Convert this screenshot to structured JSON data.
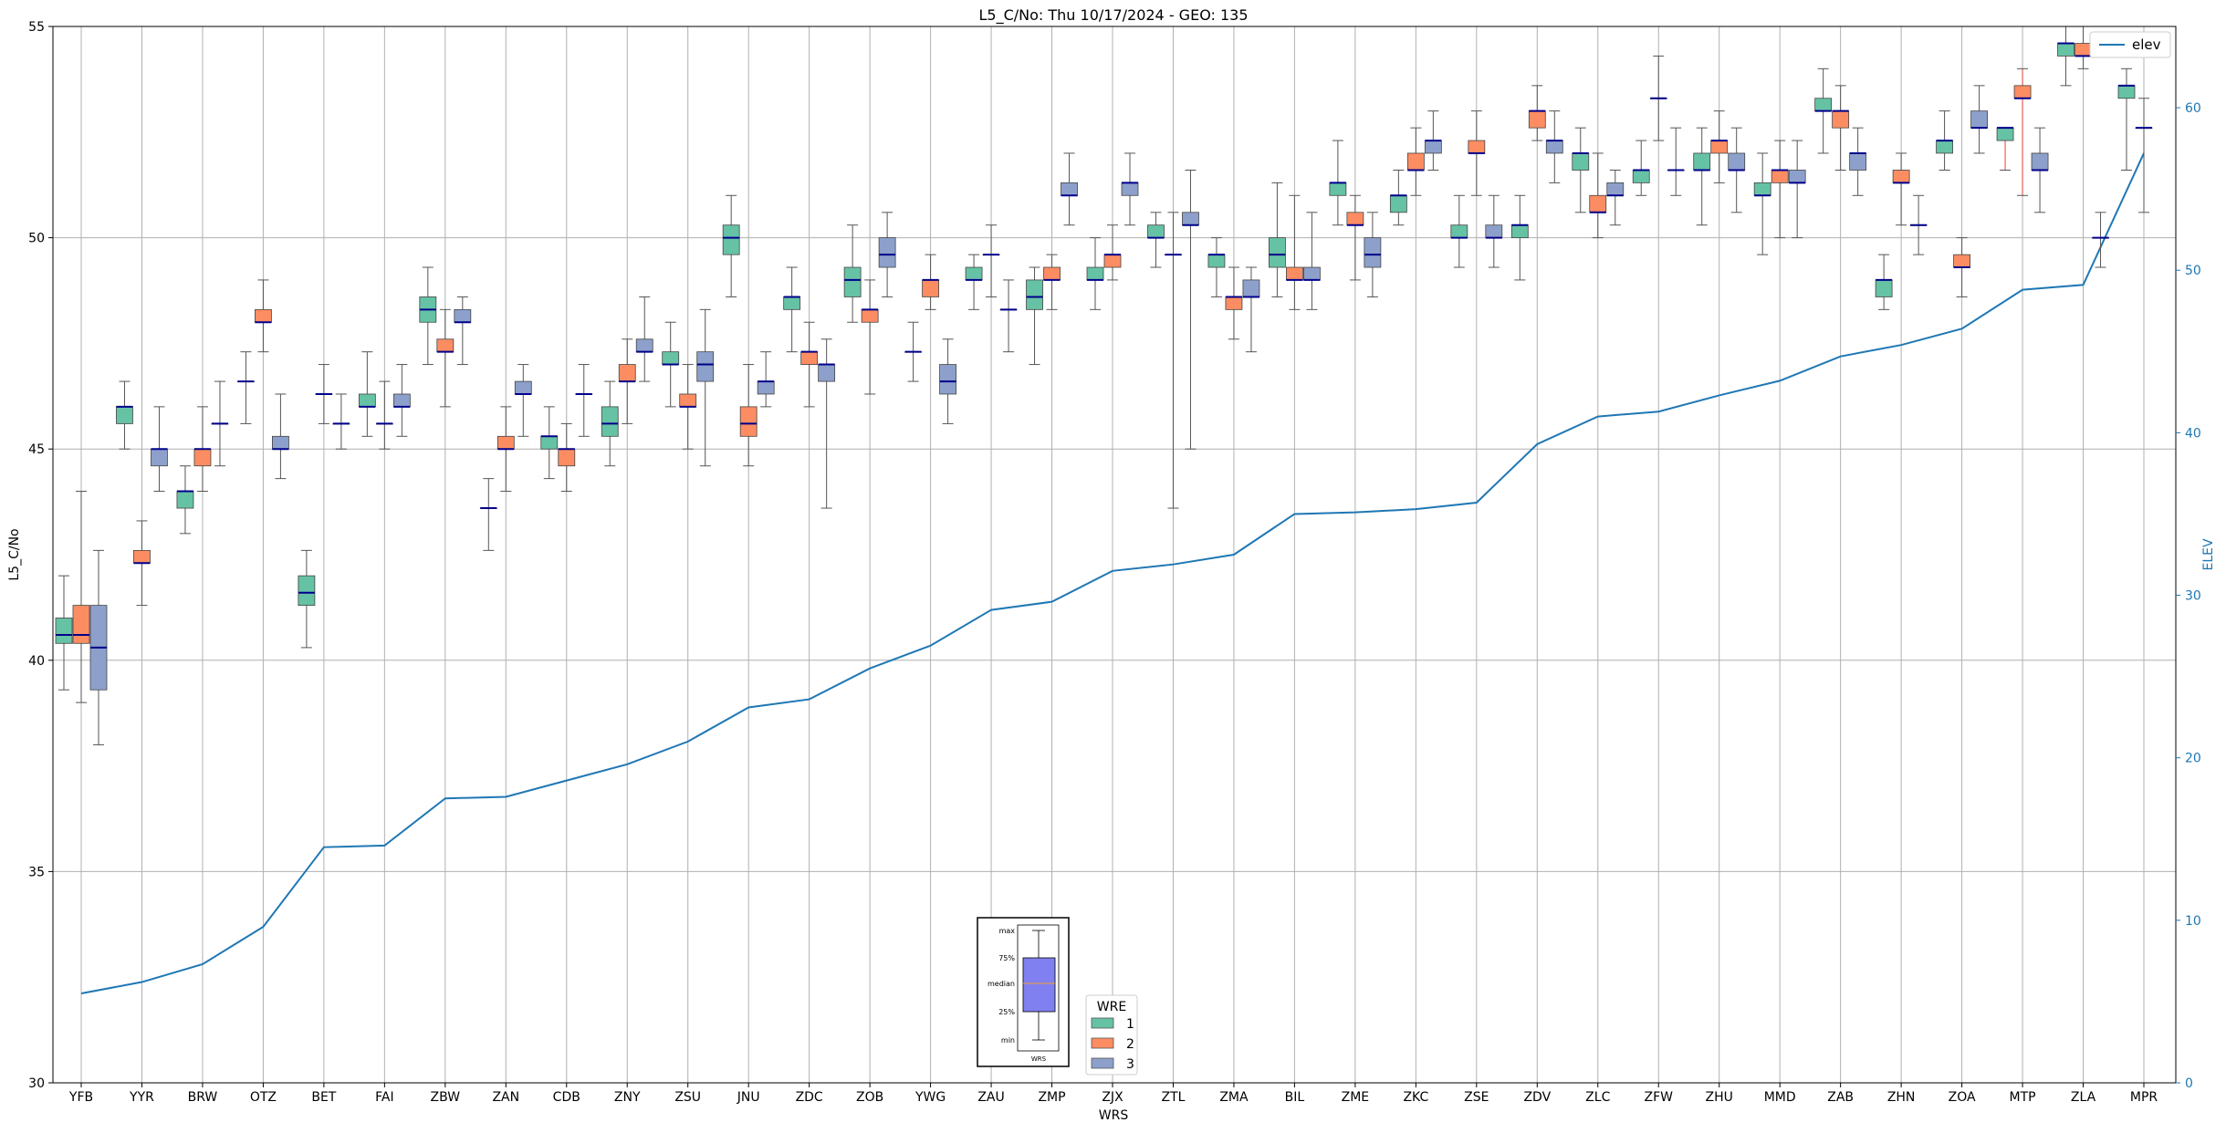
{
  "chart_data": {
    "type": "box",
    "title": "L5_C/No: Thu 10/17/2024 - GEO: 135",
    "xlabel": "WRS",
    "ylabel": "L5_C/No",
    "y2label": "ELEV",
    "ylim": [
      30,
      55
    ],
    "y2lim": [
      0,
      65
    ],
    "yticks": [
      30,
      35,
      40,
      45,
      50,
      55
    ],
    "y2ticks": [
      0,
      10,
      20,
      30,
      40,
      50,
      60
    ],
    "grid": true,
    "categories": [
      "YFB",
      "YYR",
      "BRW",
      "OTZ",
      "BET",
      "FAI",
      "ZBW",
      "ZAN",
      "CDB",
      "ZNY",
      "ZSU",
      "JNU",
      "ZDC",
      "ZOB",
      "YWG",
      "ZAU",
      "ZMP",
      "ZJX",
      "ZTL",
      "ZMA",
      "BIL",
      "ZME",
      "ZKC",
      "ZSE",
      "ZDV",
      "ZLC",
      "ZFW",
      "ZHU",
      "MMD",
      "ZAB",
      "ZHN",
      "ZOA",
      "MTP",
      "ZLA",
      "MPR"
    ],
    "wre_colors": {
      "1": "#66c2a5",
      "2": "#fc8d62",
      "3": "#8da0cb"
    },
    "median_color": "#00008b",
    "boxes": [
      {
        "station": "YFB",
        "wre": 1,
        "whislo": 39.3,
        "q1": 40.4,
        "med": 40.6,
        "q3": 41.0,
        "whishi": 42.0
      },
      {
        "station": "YFB",
        "wre": 2,
        "whislo": 39.0,
        "q1": 40.4,
        "med": 40.6,
        "q3": 41.3,
        "whishi": 44.0
      },
      {
        "station": "YFB",
        "wre": 3,
        "whislo": 38.0,
        "q1": 39.3,
        "med": 40.3,
        "q3": 41.3,
        "whishi": 42.6
      },
      {
        "station": "YYR",
        "wre": 1,
        "whislo": 45.0,
        "q1": 45.6,
        "med": 46.0,
        "q3": 46.0,
        "whishi": 46.6
      },
      {
        "station": "YYR",
        "wre": 2,
        "whislo": 41.3,
        "q1": 42.3,
        "med": 42.3,
        "q3": 42.6,
        "whishi": 43.3
      },
      {
        "station": "YYR",
        "wre": 3,
        "whislo": 44.0,
        "q1": 44.6,
        "med": 45.0,
        "q3": 45.0,
        "whishi": 46.0
      },
      {
        "station": "BRW",
        "wre": 1,
        "whislo": 43.0,
        "q1": 43.6,
        "med": 44.0,
        "q3": 44.0,
        "whishi": 44.6
      },
      {
        "station": "BRW",
        "wre": 2,
        "whislo": 44.0,
        "q1": 44.6,
        "med": 45.0,
        "q3": 45.0,
        "whishi": 46.0
      },
      {
        "station": "BRW",
        "wre": 3,
        "whislo": 44.6,
        "q1": 45.6,
        "med": 45.6,
        "q3": 45.6,
        "whishi": 46.6
      },
      {
        "station": "OTZ",
        "wre": 1,
        "whislo": 45.6,
        "q1": 46.6,
        "med": 46.6,
        "q3": 46.6,
        "whishi": 47.3
      },
      {
        "station": "OTZ",
        "wre": 2,
        "whislo": 47.3,
        "q1": 48.0,
        "med": 48.0,
        "q3": 48.3,
        "whishi": 49.0
      },
      {
        "station": "OTZ",
        "wre": 3,
        "whislo": 44.3,
        "q1": 45.0,
        "med": 45.0,
        "q3": 45.3,
        "whishi": 46.3
      },
      {
        "station": "BET",
        "wre": 1,
        "whislo": 40.3,
        "q1": 41.3,
        "med": 41.6,
        "q3": 42.0,
        "whishi": 42.6
      },
      {
        "station": "BET",
        "wre": 2,
        "whislo": 45.6,
        "q1": 46.3,
        "med": 46.3,
        "q3": 46.3,
        "whishi": 47.0
      },
      {
        "station": "BET",
        "wre": 3,
        "whislo": 45.0,
        "q1": 45.6,
        "med": 45.6,
        "q3": 45.6,
        "whishi": 46.3
      },
      {
        "station": "FAI",
        "wre": 1,
        "whislo": 45.3,
        "q1": 46.0,
        "med": 46.0,
        "q3": 46.3,
        "whishi": 47.3
      },
      {
        "station": "FAI",
        "wre": 2,
        "whislo": 45.0,
        "q1": 45.6,
        "med": 45.6,
        "q3": 45.6,
        "whishi": 46.6
      },
      {
        "station": "FAI",
        "wre": 3,
        "whislo": 45.3,
        "q1": 46.0,
        "med": 46.0,
        "q3": 46.3,
        "whishi": 47.0
      },
      {
        "station": "ZBW",
        "wre": 1,
        "whislo": 47.0,
        "q1": 48.0,
        "med": 48.3,
        "q3": 48.6,
        "whishi": 49.3
      },
      {
        "station": "ZBW",
        "wre": 2,
        "whislo": 46.0,
        "q1": 47.3,
        "med": 47.3,
        "q3": 47.6,
        "whishi": 48.3
      },
      {
        "station": "ZBW",
        "wre": 3,
        "whislo": 47.0,
        "q1": 48.0,
        "med": 48.0,
        "q3": 48.3,
        "whishi": 48.6
      },
      {
        "station": "ZAN",
        "wre": 1,
        "whislo": 42.6,
        "q1": 43.6,
        "med": 43.6,
        "q3": 43.6,
        "whishi": 44.3
      },
      {
        "station": "ZAN",
        "wre": 2,
        "whislo": 44.0,
        "q1": 45.0,
        "med": 45.0,
        "q3": 45.3,
        "whishi": 46.0
      },
      {
        "station": "ZAN",
        "wre": 3,
        "whislo": 45.3,
        "q1": 46.3,
        "med": 46.3,
        "q3": 46.6,
        "whishi": 47.0
      },
      {
        "station": "CDB",
        "wre": 1,
        "whislo": 44.3,
        "q1": 45.0,
        "med": 45.3,
        "q3": 45.3,
        "whishi": 46.0
      },
      {
        "station": "CDB",
        "wre": 2,
        "whislo": 44.0,
        "q1": 44.6,
        "med": 45.0,
        "q3": 45.0,
        "whishi": 45.6
      },
      {
        "station": "CDB",
        "wre": 3,
        "whislo": 45.3,
        "q1": 46.3,
        "med": 46.3,
        "q3": 46.3,
        "whishi": 47.0
      },
      {
        "station": "ZNY",
        "wre": 1,
        "whislo": 44.6,
        "q1": 45.3,
        "med": 45.6,
        "q3": 46.0,
        "whishi": 46.6
      },
      {
        "station": "ZNY",
        "wre": 2,
        "whislo": 45.6,
        "q1": 46.6,
        "med": 46.6,
        "q3": 47.0,
        "whishi": 47.6
      },
      {
        "station": "ZNY",
        "wre": 3,
        "whislo": 46.6,
        "q1": 47.3,
        "med": 47.3,
        "q3": 47.6,
        "whishi": 48.6
      },
      {
        "station": "ZSU",
        "wre": 1,
        "whislo": 46.0,
        "q1": 47.0,
        "med": 47.0,
        "q3": 47.3,
        "whishi": 48.0
      },
      {
        "station": "ZSU",
        "wre": 2,
        "whislo": 45.0,
        "q1": 46.0,
        "med": 46.0,
        "q3": 46.3,
        "whishi": 47.0
      },
      {
        "station": "ZSU",
        "wre": 3,
        "whislo": 44.6,
        "q1": 46.6,
        "med": 47.0,
        "q3": 47.3,
        "whishi": 48.3
      },
      {
        "station": "JNU",
        "wre": 1,
        "whislo": 48.6,
        "q1": 49.6,
        "med": 50.0,
        "q3": 50.3,
        "whishi": 51.0
      },
      {
        "station": "JNU",
        "wre": 2,
        "whislo": 44.6,
        "q1": 45.3,
        "med": 45.6,
        "q3": 46.0,
        "whishi": 47.0
      },
      {
        "station": "JNU",
        "wre": 3,
        "whislo": 46.0,
        "q1": 46.3,
        "med": 46.6,
        "q3": 46.6,
        "whishi": 47.3
      },
      {
        "station": "ZDC",
        "wre": 1,
        "whislo": 47.3,
        "q1": 48.3,
        "med": 48.6,
        "q3": 48.6,
        "whishi": 49.3
      },
      {
        "station": "ZDC",
        "wre": 2,
        "whislo": 46.0,
        "q1": 47.0,
        "med": 47.3,
        "q3": 47.3,
        "whishi": 48.0
      },
      {
        "station": "ZDC",
        "wre": 3,
        "whislo": 43.6,
        "q1": 46.6,
        "med": 47.0,
        "q3": 47.0,
        "whishi": 47.6
      },
      {
        "station": "ZOB",
        "wre": 1,
        "whislo": 48.0,
        "q1": 48.6,
        "med": 49.0,
        "q3": 49.3,
        "whishi": 50.3
      },
      {
        "station": "ZOB",
        "wre": 2,
        "whislo": 46.3,
        "q1": 48.0,
        "med": 48.3,
        "q3": 48.3,
        "whishi": 49.0
      },
      {
        "station": "ZOB",
        "wre": 3,
        "whislo": 48.6,
        "q1": 49.3,
        "med": 49.6,
        "q3": 50.0,
        "whishi": 50.6
      },
      {
        "station": "YWG",
        "wre": 1,
        "whislo": 46.6,
        "q1": 47.3,
        "med": 47.3,
        "q3": 47.3,
        "whishi": 48.0
      },
      {
        "station": "YWG",
        "wre": 2,
        "whislo": 48.3,
        "q1": 48.6,
        "med": 49.0,
        "q3": 49.0,
        "whishi": 49.6
      },
      {
        "station": "YWG",
        "wre": 3,
        "whislo": 45.6,
        "q1": 46.3,
        "med": 46.6,
        "q3": 47.0,
        "whishi": 47.6
      },
      {
        "station": "ZAU",
        "wre": 1,
        "whislo": 48.3,
        "q1": 49.0,
        "med": 49.0,
        "q3": 49.3,
        "whishi": 49.6
      },
      {
        "station": "ZAU",
        "wre": 2,
        "whislo": 48.6,
        "q1": 49.6,
        "med": 49.6,
        "q3": 49.6,
        "whishi": 50.3
      },
      {
        "station": "ZAU",
        "wre": 3,
        "whislo": 47.3,
        "q1": 48.3,
        "med": 48.3,
        "q3": 48.3,
        "whishi": 49.0
      },
      {
        "station": "ZMP",
        "wre": 1,
        "whislo": 47.0,
        "q1": 48.3,
        "med": 48.6,
        "q3": 49.0,
        "whishi": 49.3
      },
      {
        "station": "ZMP",
        "wre": 2,
        "whislo": 48.3,
        "q1": 49.0,
        "med": 49.0,
        "q3": 49.3,
        "whishi": 49.6
      },
      {
        "station": "ZMP",
        "wre": 3,
        "whislo": 50.3,
        "q1": 51.0,
        "med": 51.0,
        "q3": 51.3,
        "whishi": 52.0
      },
      {
        "station": "ZJX",
        "wre": 1,
        "whislo": 48.3,
        "q1": 49.0,
        "med": 49.0,
        "q3": 49.3,
        "whishi": 50.0
      },
      {
        "station": "ZJX",
        "wre": 2,
        "whislo": 49.0,
        "q1": 49.3,
        "med": 49.6,
        "q3": 49.6,
        "whishi": 50.3
      },
      {
        "station": "ZJX",
        "wre": 3,
        "whislo": 50.3,
        "q1": 51.0,
        "med": 51.3,
        "q3": 51.3,
        "whishi": 52.0
      },
      {
        "station": "ZTL",
        "wre": 1,
        "whislo": 49.3,
        "q1": 50.0,
        "med": 50.0,
        "q3": 50.3,
        "whishi": 50.6
      },
      {
        "station": "ZTL",
        "wre": 2,
        "whislo": 43.6,
        "q1": 49.6,
        "med": 49.6,
        "q3": 49.6,
        "whishi": 50.6
      },
      {
        "station": "ZTL",
        "wre": 3,
        "whislo": 45.0,
        "q1": 50.3,
        "med": 50.3,
        "q3": 50.6,
        "whishi": 51.6
      },
      {
        "station": "ZMA",
        "wre": 1,
        "whislo": 48.6,
        "q1": 49.3,
        "med": 49.6,
        "q3": 49.6,
        "whishi": 50.0
      },
      {
        "station": "ZMA",
        "wre": 2,
        "whislo": 47.6,
        "q1": 48.3,
        "med": 48.6,
        "q3": 48.6,
        "whishi": 49.3
      },
      {
        "station": "ZMA",
        "wre": 3,
        "whislo": 47.3,
        "q1": 48.6,
        "med": 48.6,
        "q3": 49.0,
        "whishi": 49.3
      },
      {
        "station": "BIL",
        "wre": 1,
        "whislo": 48.6,
        "q1": 49.3,
        "med": 49.6,
        "q3": 50.0,
        "whishi": 51.3
      },
      {
        "station": "BIL",
        "wre": 2,
        "whislo": 48.3,
        "q1": 49.0,
        "med": 49.0,
        "q3": 49.3,
        "whishi": 51.0
      },
      {
        "station": "BIL",
        "wre": 3,
        "whislo": 48.3,
        "q1": 49.0,
        "med": 49.0,
        "q3": 49.3,
        "whishi": 50.6
      },
      {
        "station": "ZME",
        "wre": 1,
        "whislo": 50.3,
        "q1": 51.0,
        "med": 51.3,
        "q3": 51.3,
        "whishi": 52.3
      },
      {
        "station": "ZME",
        "wre": 2,
        "whislo": 49.0,
        "q1": 50.3,
        "med": 50.3,
        "q3": 50.6,
        "whishi": 51.0
      },
      {
        "station": "ZME",
        "wre": 3,
        "whislo": 48.6,
        "q1": 49.3,
        "med": 49.6,
        "q3": 50.0,
        "whishi": 50.6
      },
      {
        "station": "ZKC",
        "wre": 1,
        "whislo": 50.3,
        "q1": 50.6,
        "med": 51.0,
        "q3": 51.0,
        "whishi": 51.6
      },
      {
        "station": "ZKC",
        "wre": 2,
        "whislo": 51.0,
        "q1": 51.6,
        "med": 51.6,
        "q3": 52.0,
        "whishi": 52.6
      },
      {
        "station": "ZKC",
        "wre": 3,
        "whislo": 51.6,
        "q1": 52.0,
        "med": 52.3,
        "q3": 52.3,
        "whishi": 53.0
      },
      {
        "station": "ZSE",
        "wre": 1,
        "whislo": 49.3,
        "q1": 50.0,
        "med": 50.0,
        "q3": 50.3,
        "whishi": 51.0
      },
      {
        "station": "ZSE",
        "wre": 2,
        "whislo": 51.0,
        "q1": 52.0,
        "med": 52.0,
        "q3": 52.3,
        "whishi": 53.0
      },
      {
        "station": "ZSE",
        "wre": 3,
        "whislo": 49.3,
        "q1": 50.0,
        "med": 50.0,
        "q3": 50.3,
        "whishi": 51.0
      },
      {
        "station": "ZDV",
        "wre": 1,
        "whislo": 49.0,
        "q1": 50.0,
        "med": 50.3,
        "q3": 50.3,
        "whishi": 51.0
      },
      {
        "station": "ZDV",
        "wre": 2,
        "whislo": 52.3,
        "q1": 52.6,
        "med": 53.0,
        "q3": 53.0,
        "whishi": 53.6
      },
      {
        "station": "ZDV",
        "wre": 3,
        "whislo": 51.3,
        "q1": 52.0,
        "med": 52.3,
        "q3": 52.3,
        "whishi": 53.0
      },
      {
        "station": "ZLC",
        "wre": 1,
        "whislo": 50.6,
        "q1": 51.6,
        "med": 52.0,
        "q3": 52.0,
        "whishi": 52.6
      },
      {
        "station": "ZLC",
        "wre": 2,
        "whislo": 50.0,
        "q1": 50.6,
        "med": 50.6,
        "q3": 51.0,
        "whishi": 52.0
      },
      {
        "station": "ZLC",
        "wre": 3,
        "whislo": 50.3,
        "q1": 51.0,
        "med": 51.0,
        "q3": 51.3,
        "whishi": 51.6
      },
      {
        "station": "ZFW",
        "wre": 1,
        "whislo": 51.0,
        "q1": 51.3,
        "med": 51.6,
        "q3": 51.6,
        "whishi": 52.3
      },
      {
        "station": "ZFW",
        "wre": 2,
        "whislo": 52.3,
        "q1": 53.3,
        "med": 53.3,
        "q3": 53.3,
        "whishi": 54.3
      },
      {
        "station": "ZFW",
        "wre": 3,
        "whislo": 51.0,
        "q1": 51.6,
        "med": 51.6,
        "q3": 51.6,
        "whishi": 52.6
      },
      {
        "station": "ZHU",
        "wre": 1,
        "whislo": 50.3,
        "q1": 51.6,
        "med": 51.6,
        "q3": 52.0,
        "whishi": 52.6
      },
      {
        "station": "ZHU",
        "wre": 2,
        "whislo": 51.3,
        "q1": 52.0,
        "med": 52.3,
        "q3": 52.3,
        "whishi": 53.0
      },
      {
        "station": "ZHU",
        "wre": 3,
        "whislo": 50.6,
        "q1": 51.6,
        "med": 51.6,
        "q3": 52.0,
        "whishi": 52.6
      },
      {
        "station": "MMD",
        "wre": 1,
        "whislo": 49.6,
        "q1": 51.0,
        "med": 51.0,
        "q3": 51.3,
        "whishi": 52.0
      },
      {
        "station": "MMD",
        "wre": 2,
        "whislo": 50.0,
        "q1": 51.3,
        "med": 51.6,
        "q3": 51.6,
        "whishi": 52.3
      },
      {
        "station": "MMD",
        "wre": 3,
        "whislo": 50.0,
        "q1": 51.3,
        "med": 51.3,
        "q3": 51.6,
        "whishi": 52.3
      },
      {
        "station": "ZAB",
        "wre": 1,
        "whislo": 52.0,
        "q1": 53.0,
        "med": 53.0,
        "q3": 53.3,
        "whishi": 54.0
      },
      {
        "station": "ZAB",
        "wre": 2,
        "whislo": 51.6,
        "q1": 52.6,
        "med": 53.0,
        "q3": 53.0,
        "whishi": 53.6
      },
      {
        "station": "ZAB",
        "wre": 3,
        "whislo": 51.0,
        "q1": 51.6,
        "med": 52.0,
        "q3": 52.0,
        "whishi": 52.6
      },
      {
        "station": "ZHN",
        "wre": 1,
        "whislo": 48.3,
        "q1": 48.6,
        "med": 49.0,
        "q3": 49.0,
        "whishi": 49.6
      },
      {
        "station": "ZHN",
        "wre": 2,
        "whislo": 50.3,
        "q1": 51.3,
        "med": 51.3,
        "q3": 51.6,
        "whishi": 52.0
      },
      {
        "station": "ZHN",
        "wre": 3,
        "whislo": 49.6,
        "q1": 50.3,
        "med": 50.3,
        "q3": 50.3,
        "whishi": 51.0
      },
      {
        "station": "ZOA",
        "wre": 1,
        "whislo": 51.6,
        "q1": 52.0,
        "med": 52.3,
        "q3": 52.3,
        "whishi": 53.0
      },
      {
        "station": "ZOA",
        "wre": 2,
        "whislo": 48.6,
        "q1": 49.3,
        "med": 49.3,
        "q3": 49.6,
        "whishi": 50.0
      },
      {
        "station": "ZOA",
        "wre": 3,
        "whislo": 52.0,
        "q1": 52.6,
        "med": 52.6,
        "q3": 53.0,
        "whishi": 53.6
      },
      {
        "station": "MTP",
        "wre": 1,
        "whislo": 51.6,
        "q1": 52.3,
        "med": 52.6,
        "q3": 52.6,
        "whishi": 52.6
      },
      {
        "station": "MTP",
        "wre": 2,
        "whislo": 51.0,
        "q1": 53.3,
        "med": 53.3,
        "q3": 53.6,
        "whishi": 54.0
      },
      {
        "station": "MTP",
        "wre": 3,
        "whislo": 50.6,
        "q1": 51.6,
        "med": 51.6,
        "q3": 52.0,
        "whishi": 52.6
      },
      {
        "station": "ZLA",
        "wre": 1,
        "whislo": 53.6,
        "q1": 54.3,
        "med": 54.6,
        "q3": 54.6,
        "whishi": 55.0
      },
      {
        "station": "ZLA",
        "wre": 2,
        "whislo": 54.0,
        "q1": 54.3,
        "med": 54.3,
        "q3": 54.6,
        "whishi": 55.0
      },
      {
        "station": "ZLA",
        "wre": 3,
        "whislo": 49.3,
        "q1": 50.0,
        "med": 50.0,
        "q3": 50.0,
        "whishi": 50.6
      },
      {
        "station": "MPR",
        "wre": 1,
        "whislo": 51.6,
        "q1": 53.3,
        "med": 53.6,
        "q3": 53.6,
        "whishi": 54.0
      },
      {
        "station": "MPR",
        "wre": 2,
        "whislo": 50.6,
        "q1": 52.6,
        "med": 52.6,
        "q3": 52.6,
        "whishi": 53.3
      }
    ],
    "red_whiskers": [
      {
        "station": "MTP",
        "wre": 1
      },
      {
        "station": "MTP",
        "wre": 2
      }
    ],
    "elev_series": {
      "name": "elev",
      "color": "#1f77b4",
      "values": [
        5.5,
        6.2,
        7.3,
        9.6,
        14.5,
        14.6,
        17.5,
        17.6,
        18.6,
        19.6,
        21.0,
        23.1,
        23.6,
        25.5,
        26.9,
        29.1,
        29.6,
        31.5,
        31.9,
        32.5,
        35.0,
        35.1,
        35.3,
        35.7,
        39.3,
        41.0,
        41.3,
        42.3,
        43.2,
        44.7,
        45.4,
        46.4,
        48.8,
        49.1,
        57.2
      ]
    },
    "legend_wre": {
      "title": "WRE",
      "entries": [
        "1",
        "2",
        "3"
      ],
      "location": "lower-center"
    },
    "legend_elev": {
      "entries": [
        "elev"
      ],
      "location": "upper-right"
    },
    "inset_key": {
      "labels": [
        "max",
        "75%",
        "median",
        "25%",
        "min"
      ],
      "xlabel": "WRS"
    }
  }
}
